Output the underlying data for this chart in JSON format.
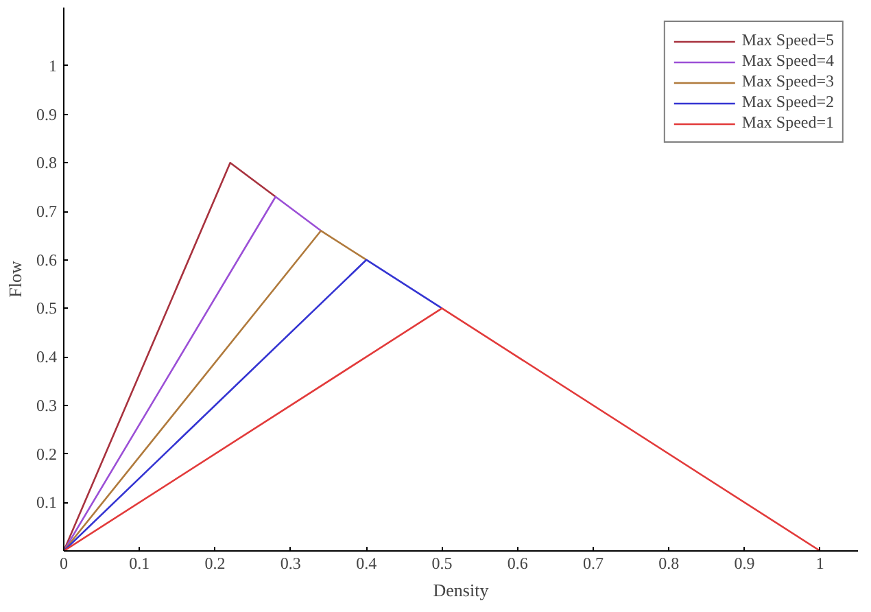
{
  "chart_data": {
    "type": "line",
    "xlabel": "Density",
    "ylabel": "Flow",
    "xlim": [
      0,
      1.05
    ],
    "ylim": [
      0,
      1.12
    ],
    "xticks": [
      0,
      0.1,
      0.2,
      0.3,
      0.4,
      0.5,
      0.6,
      0.7,
      0.8,
      0.9,
      1
    ],
    "yticks": [
      {
        "value": 0,
        "label": null
      },
      0.1,
      0.2,
      0.3,
      0.4,
      0.5,
      0.6,
      0.7,
      0.8,
      0.9,
      1
    ],
    "grid": false,
    "legend": "top right",
    "marker": "none",
    "line_style": "solid",
    "series": [
      {
        "name": "Max Speed=5",
        "color": "#a8323e",
        "x": [
          0,
          0.22,
          0.28
        ],
        "values": [
          0,
          0.8,
          0.73
        ]
      },
      {
        "name": "Max Speed=4",
        "color": "#9b4fd6",
        "x": [
          0,
          0.28,
          0.34
        ],
        "values": [
          0,
          0.73,
          0.66
        ]
      },
      {
        "name": "Max Speed=3",
        "color": "#b07a3c",
        "x": [
          0,
          0.34,
          0.4
        ],
        "values": [
          0,
          0.66,
          0.6
        ]
      },
      {
        "name": "Max Speed=2",
        "color": "#3434d2",
        "x": [
          0,
          0.4,
          0.5
        ],
        "values": [
          0,
          0.6,
          0.5
        ]
      },
      {
        "name": "Max Speed=1",
        "color": "#e23a3a",
        "x": [
          0,
          0.5,
          1
        ],
        "values": [
          0,
          0.5,
          0
        ]
      }
    ]
  }
}
